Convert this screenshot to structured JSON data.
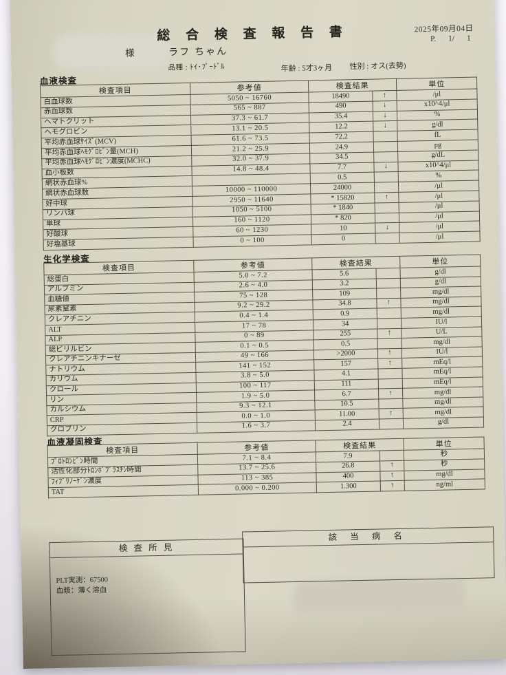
{
  "header": {
    "title": "総 合 検 査 報 告 書",
    "date": "2025年09月04日",
    "page_prefix": "P.",
    "page_current": "1/",
    "page_total": "1",
    "client_honorific": "様",
    "patient_name": "ラフ ちゃん",
    "breed_label": "品種 :",
    "breed_value": "ﾄｲ･ﾌﾟｰﾄﾞﾙ",
    "age_label": "年齢 :",
    "age_value": "5才3ヶ月",
    "sex_label": "性別 :",
    "sex_value": "オス(去勢)"
  },
  "table_columns": {
    "item": "検査項目",
    "reference": "参考値",
    "result": "検査結果",
    "unit": "単位"
  },
  "sections": [
    {
      "title": "血液検査",
      "rows": [
        {
          "item": "白血球数",
          "reference": "5050 ~ 16760",
          "result": "18490",
          "flag": "↑",
          "unit": "/μl"
        },
        {
          "item": "赤血球数",
          "reference": "565 ~ 887",
          "result": "490",
          "flag": "↓",
          "unit": "x10^4/μl"
        },
        {
          "item": "ヘマトクリット",
          "reference": "37.3 ~ 61.7",
          "result": "35.4",
          "flag": "↓",
          "unit": "%"
        },
        {
          "item": "ヘモグロビン",
          "reference": "13.1 ~ 20.5",
          "result": "12.2",
          "flag": "↓",
          "unit": "g/dl"
        },
        {
          "item": "平均赤血球ｻｲｽﾞ(MCV)",
          "reference": "61.6 ~ 73.5",
          "result": "72.2",
          "flag": "",
          "unit": "fL"
        },
        {
          "item": "平均赤血球ﾍﾓｸﾞﾛﾋﾞﾝ量(MCH)",
          "reference": "21.2 ~ 25.9",
          "result": "24.9",
          "flag": "",
          "unit": "pg"
        },
        {
          "item": "平均赤血球ﾍﾓｸﾞﾛﾋﾞﾝ濃度(MCHC)",
          "reference": "32.0 ~ 37.9",
          "result": "34.5",
          "flag": "",
          "unit": "g/dL"
        },
        {
          "item": "血小板数",
          "reference": "14.8 ~ 48.4",
          "result": "7.7",
          "flag": "↓",
          "unit": "x10^4/μl"
        },
        {
          "item": "網状赤血球%",
          "reference": "",
          "result": "0.5",
          "flag": "",
          "unit": "%"
        },
        {
          "item": "網状赤血球数",
          "reference": "10000 ~ 110000",
          "result": "24000",
          "flag": "",
          "unit": "/μl"
        },
        {
          "item": "好中球",
          "reference": "2950 ~ 11640",
          "result": "* 15820",
          "flag": "↑",
          "unit": "/μl"
        },
        {
          "item": "リンパ球",
          "reference": "1050 ~ 5100",
          "result": "* 1840",
          "flag": "",
          "unit": "/μl"
        },
        {
          "item": "単球",
          "reference": "160 ~ 1120",
          "result": "* 820",
          "flag": "",
          "unit": "/μl"
        },
        {
          "item": "好酸球",
          "reference": "60 ~ 1230",
          "result": "10",
          "flag": "↓",
          "unit": "/μl"
        },
        {
          "item": "好塩基球",
          "reference": "0 ~ 100",
          "result": "0",
          "flag": "",
          "unit": "/μl"
        }
      ]
    },
    {
      "title": "生化学検査",
      "rows": [
        {
          "item": "総蛋白",
          "reference": "5.0 ~ 7.2",
          "result": "5.6",
          "flag": "",
          "unit": "g/dl"
        },
        {
          "item": "アルブミン",
          "reference": "2.6 ~ 4.0",
          "result": "3.2",
          "flag": "",
          "unit": "g/dl"
        },
        {
          "item": "血糖値",
          "reference": "75 ~ 128",
          "result": "109",
          "flag": "",
          "unit": "mg/dl"
        },
        {
          "item": "尿素窒素",
          "reference": "9.2 ~ 29.2",
          "result": "34.8",
          "flag": "↑",
          "unit": "mg/dl"
        },
        {
          "item": "クレアチニン",
          "reference": "0.4 ~ 1.4",
          "result": "0.9",
          "flag": "",
          "unit": "mg/dl"
        },
        {
          "item": "ALT",
          "reference": "17 ~ 78",
          "result": "34",
          "flag": "",
          "unit": "IU/l"
        },
        {
          "item": "ALP",
          "reference": "0 ~ 89",
          "result": "255",
          "flag": "↑",
          "unit": "U/L"
        },
        {
          "item": "総ビリルビン",
          "reference": "0.1 ~ 0.5",
          "result": "0.5",
          "flag": "",
          "unit": "mg/dl"
        },
        {
          "item": "クレアチニンキナーゼ",
          "reference": "49 ~ 166",
          "result": ">2000",
          "flag": "↑",
          "unit": "IU/l"
        },
        {
          "item": "ナトリウム",
          "reference": "141 ~ 152",
          "result": "157",
          "flag": "↑",
          "unit": "mEq/l"
        },
        {
          "item": "カリウム",
          "reference": "3.8 ~ 5.0",
          "result": "4.1",
          "flag": "",
          "unit": "mEq/l"
        },
        {
          "item": "クロール",
          "reference": "100 ~ 117",
          "result": "111",
          "flag": "",
          "unit": "mEq/l"
        },
        {
          "item": "リン",
          "reference": "1.9 ~ 5.0",
          "result": "6.7",
          "flag": "↑",
          "unit": "mg/dl"
        },
        {
          "item": "カルシウム",
          "reference": "9.3 ~ 12.1",
          "result": "10.5",
          "flag": "",
          "unit": "mg/dl"
        },
        {
          "item": "CRP",
          "reference": "0.0 ~ 1.0",
          "result": "11.00",
          "flag": "↑",
          "unit": "mg/dl"
        },
        {
          "item": "グロブリン",
          "reference": "1.6 ~ 3.7",
          "result": "2.4",
          "flag": "",
          "unit": "g/dl"
        }
      ]
    },
    {
      "title": "血液凝固検査",
      "rows": [
        {
          "item": "ﾌﾟﾛﾄﾛﾝﾋﾞﾝ時間",
          "reference": "7.1 ~ 8.4",
          "result": "7.9",
          "flag": "",
          "unit": "秒"
        },
        {
          "item": "活性化部分ﾄﾛﾝﾎﾞﾌﾟﾗｽﾁﾝ時間",
          "reference": "13.7 ~ 25.6",
          "result": "26.8",
          "flag": "↑",
          "unit": "秒"
        },
        {
          "item": "ﾌｨﾌﾞﾘﾉｰｹﾞﾝ濃度",
          "reference": "113 ~ 385",
          "result": "400",
          "flag": "↑",
          "unit": "mg/dl"
        },
        {
          "item": "TAT",
          "reference": "0.000 ~ 0.200",
          "result": "1.300",
          "flag": "↑",
          "unit": "ng/ml"
        }
      ]
    }
  ],
  "findings": {
    "title": "検 査 所 見",
    "lines": [
      "PLT実測：67500",
      "血漿：薄く溶血"
    ]
  },
  "diagnosis": {
    "title": "該 当 病 名"
  }
}
